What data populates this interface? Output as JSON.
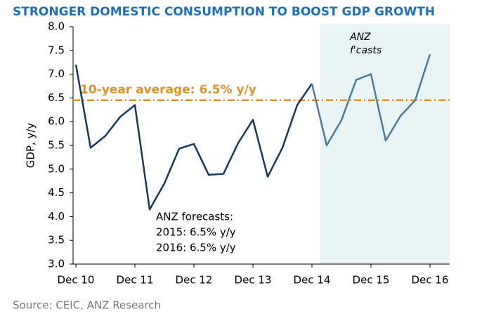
{
  "chart_data": {
    "type": "line",
    "title": "STRONGER DOMESTIC CONSUMPTION TO BOOST GDP GROWTH",
    "y_label": "GDP, y/y",
    "source": "Source: CEIC, ANZ Research",
    "categories": [
      "Dec 10",
      null,
      null,
      null,
      "Dec 11",
      null,
      null,
      null,
      "Dec 12",
      null,
      null,
      null,
      "Dec 13",
      null,
      null,
      null,
      "Dec 14",
      null,
      null,
      null,
      "Dec 15",
      null,
      null,
      null,
      "Dec 16"
    ],
    "series": [
      {
        "color": "#17375e",
        "values": [
          7.2,
          5.45,
          5.7,
          6.1,
          6.35,
          4.15,
          4.7,
          5.43,
          5.53,
          4.88,
          4.9,
          5.55,
          6.04,
          4.84,
          5.45,
          6.35,
          6.8,
          null,
          null,
          null,
          null,
          null,
          null,
          null,
          null
        ]
      },
      {
        "color": "#4f7a9c",
        "values": [
          null,
          null,
          null,
          null,
          null,
          null,
          null,
          null,
          null,
          null,
          null,
          null,
          null,
          null,
          null,
          null,
          6.8,
          5.5,
          6.03,
          6.88,
          7.0,
          5.6,
          6.12,
          6.45,
          7.42
        ]
      }
    ],
    "reference_line": {
      "value": 6.45,
      "label": "10-year average: 6.5% y/y",
      "color": "#d9922e"
    },
    "forecast_label": [
      "ANZ",
      "f'casts"
    ],
    "annotation": [
      "ANZ forecasts:",
      "2015:  6.5% y/y",
      "2016:  6.5% y/y"
    ],
    "ylim": [
      3,
      8
    ],
    "yticks": [
      {
        "value": 3,
        "label": "3.0"
      },
      {
        "value": 3.5,
        "label": "3.5"
      },
      {
        "value": 4,
        "label": "4.0"
      },
      {
        "value": 4.5,
        "label": "4.5"
      },
      {
        "value": 5,
        "label": "5.0"
      },
      {
        "value": 5.5,
        "label": "5.5"
      },
      {
        "value": 6,
        "label": "6.0"
      },
      {
        "value": 6.5,
        "label": "6.5"
      },
      {
        "value": 7,
        "label": "7.0"
      },
      {
        "value": 7.5,
        "label": "7.5"
      },
      {
        "value": 8,
        "label": "8.0"
      }
    ]
  }
}
